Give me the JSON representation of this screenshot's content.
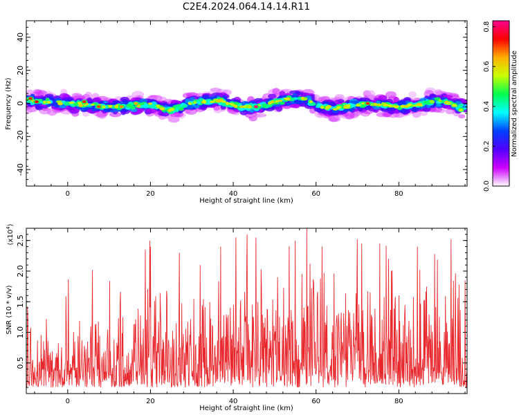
{
  "title": "C2E4.2024.064.14.14.R11",
  "colors": {
    "snr_line": "#e8282d",
    "axis": "#000000",
    "background": "#ffffff"
  },
  "chart_data": [
    {
      "type": "heatmap",
      "xlabel": "Height of straight line (km)",
      "ylabel": "Frequency (Hz)",
      "xlim": [
        -10,
        96.5
      ],
      "ylim": [
        -50,
        50
      ],
      "xticks": [
        0,
        20,
        40,
        60,
        80
      ],
      "xtick_labels": [
        "0",
        "20",
        "40",
        "60",
        "80"
      ],
      "yticks": [
        -40,
        -20,
        0,
        20,
        40
      ],
      "ytick_labels": [
        "-40",
        "-20",
        "0",
        "20",
        "40"
      ],
      "colorbar": {
        "label": "Normalized spectral amplitude",
        "range": [
          0,
          0.83
        ],
        "ticks": [
          0.0,
          0.2,
          0.4,
          0.6,
          0.8
        ],
        "tick_labels": [
          "0.0",
          "0.2",
          "0.4",
          "0.6",
          "0.8"
        ],
        "colormap": [
          "#ffffff",
          "#cc00ff",
          "#5000ff",
          "#0040ff",
          "#00ffff",
          "#00ff50",
          "#c8ff00",
          "#ffb000",
          "#ff0000",
          "#ff0090"
        ]
      },
      "band_center_hz": [
        [
          -10,
          2
        ],
        [
          0,
          0
        ],
        [
          10,
          -2
        ],
        [
          20,
          -1
        ],
        [
          25,
          -4
        ],
        [
          30,
          0
        ],
        [
          36,
          2
        ],
        [
          42,
          -2
        ],
        [
          46,
          -2
        ],
        [
          52,
          2
        ],
        [
          57,
          3
        ],
        [
          60,
          -1
        ],
        [
          64,
          -3
        ],
        [
          72,
          0
        ],
        [
          80,
          -2
        ],
        [
          85,
          -1
        ],
        [
          90,
          2
        ],
        [
          96,
          -3
        ]
      ],
      "peaks": [
        {
          "x": -9,
          "y": 3,
          "v": 0.72
        },
        {
          "x": -7.5,
          "y": 1,
          "v": 0.75
        },
        {
          "x": 4,
          "y": 1,
          "v": 0.72
        },
        {
          "x": 7.5,
          "y": -2,
          "v": 0.7
        },
        {
          "x": 13,
          "y": -2,
          "v": 0.66
        },
        {
          "x": 16.5,
          "y": 0,
          "v": 0.65
        },
        {
          "x": 45.5,
          "y": -2,
          "v": 0.82
        },
        {
          "x": 72.5,
          "y": 0,
          "v": 0.72
        },
        {
          "x": 95,
          "y": -4,
          "v": 0.55
        }
      ]
    },
    {
      "type": "line",
      "xlabel": "Height of straight line (km)",
      "ylabel": "SNR (10 * v/v)",
      "scale_label": "(x10",
      "scale_exponent": "4",
      "scale_suffix": ")",
      "xlim": [
        -10,
        96.5
      ],
      "ylim": [
        0,
        2.7
      ],
      "xticks": [
        0,
        20,
        40,
        60,
        80
      ],
      "xtick_labels": [
        "0",
        "20",
        "40",
        "60",
        "80"
      ],
      "yticks": [
        0.5,
        1.0,
        1.5,
        2.0,
        2.5
      ],
      "ytick_labels": [
        "0.5",
        "1.0",
        "1.5",
        "2.0",
        "2.5"
      ],
      "envelope_x": [
        -10,
        -5,
        0,
        5,
        10,
        15,
        20,
        25,
        30,
        35,
        40,
        45,
        50,
        55,
        60,
        65,
        70,
        75,
        80,
        85,
        90,
        96
      ],
      "envelope_y": [
        0.9,
        0.85,
        1.1,
        1.3,
        1.35,
        1.4,
        1.7,
        1.5,
        1.6,
        1.9,
        2.0,
        2.0,
        2.0,
        1.9,
        1.95,
        1.8,
        1.9,
        1.9,
        1.8,
        1.85,
        1.9,
        1.6
      ],
      "peaks": [
        {
          "x": -9.7,
          "y": 1.42
        },
        {
          "x": -5.2,
          "y": 1.22
        },
        {
          "x": 0.2,
          "y": 1.87
        },
        {
          "x": 6.0,
          "y": 2.02
        },
        {
          "x": 19.8,
          "y": 2.5
        },
        {
          "x": 20.0,
          "y": 2.4
        },
        {
          "x": 27.0,
          "y": 2.3
        },
        {
          "x": 32.0,
          "y": 2.1
        },
        {
          "x": 37.0,
          "y": 2.4
        },
        {
          "x": 40.6,
          "y": 2.55
        },
        {
          "x": 43.3,
          "y": 2.6
        },
        {
          "x": 45.5,
          "y": 2.55
        },
        {
          "x": 55.0,
          "y": 2.5
        },
        {
          "x": 57.8,
          "y": 2.7
        },
        {
          "x": 61.5,
          "y": 2.4
        },
        {
          "x": 71.0,
          "y": 2.45
        },
        {
          "x": 75.4,
          "y": 2.45
        },
        {
          "x": 77.5,
          "y": 2.2
        },
        {
          "x": 84.5,
          "y": 2.4
        },
        {
          "x": 88.7,
          "y": 2.28
        },
        {
          "x": 92.6,
          "y": 2.52
        },
        {
          "x": 96.0,
          "y": 1.85
        }
      ]
    }
  ]
}
